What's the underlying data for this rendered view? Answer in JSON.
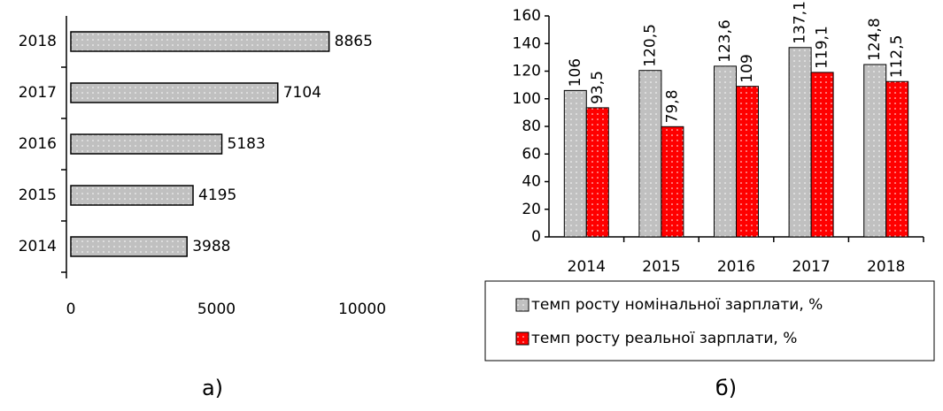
{
  "chart_data": [
    {
      "type": "barh",
      "caption": "а)",
      "categories": [
        "2014",
        "2015",
        "2016",
        "2017",
        "2018"
      ],
      "values": [
        3988,
        4195,
        5183,
        7104,
        8865
      ],
      "color": "#c0c0c0",
      "xlim": [
        0,
        10000
      ],
      "xticks": [
        0,
        5000,
        10000
      ]
    },
    {
      "type": "bar",
      "caption": "б)",
      "categories": [
        "2014",
        "2015",
        "2016",
        "2017",
        "2018"
      ],
      "series": [
        {
          "name": "темп росту номінальної зарплати, %",
          "color": "#c0c0c0",
          "values": [
            106,
            120.5,
            123.6,
            137.1,
            124.8
          ],
          "value_labels": [
            "106",
            "120,5",
            "123,6",
            "137,1",
            "124,8"
          ]
        },
        {
          "name": "темп росту реальної зарплати, %",
          "color": "#ff0000",
          "values": [
            93.5,
            79.8,
            109,
            119.1,
            112.5
          ],
          "value_labels": [
            "93,5",
            "79,8",
            "109",
            "119,1",
            "112,5"
          ]
        }
      ],
      "ylim": [
        0,
        160
      ],
      "yticks": [
        0,
        20,
        40,
        60,
        80,
        100,
        120,
        140,
        160
      ]
    }
  ]
}
